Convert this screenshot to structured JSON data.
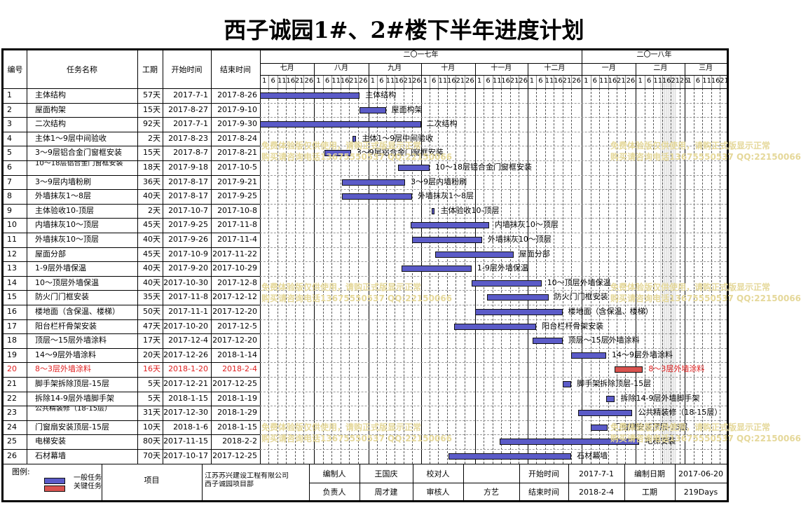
{
  "title": "西子诚园1#、2#楼下半年进度计划",
  "headers": {
    "id": "编号",
    "name": "任务名称",
    "dur": "工期",
    "start": "开始时间",
    "end": "结束时间"
  },
  "years": [
    {
      "label": "二〇一七年"
    },
    {
      "label": "二〇一八年"
    }
  ],
  "months": [
    "七月",
    "八月",
    "九月",
    "十月",
    "十一月",
    "十二月",
    "一月",
    "二月",
    "三月"
  ],
  "day_ticks": [
    "1",
    "6",
    "11",
    "16",
    "21",
    "26"
  ],
  "tasks": [
    {
      "id": "1",
      "name": "主体结构",
      "dur": "57天",
      "start": "2017-7-1",
      "end": "2017-8-26",
      "critical": false
    },
    {
      "id": "2",
      "name": "屋面构架",
      "dur": "15天",
      "start": "2017-8-27",
      "end": "2017-9-10",
      "critical": false
    },
    {
      "id": "3",
      "name": "二次结构",
      "dur": "92天",
      "start": "2017-7-1",
      "end": "2017-9-30",
      "critical": false
    },
    {
      "id": "4",
      "name": "主体1～9层中间验收",
      "dur": "2天",
      "start": "2017-8-23",
      "end": "2017-8-24",
      "critical": false
    },
    {
      "id": "5",
      "name": "3～9层铝合金门窗框安装",
      "dur": "15天",
      "start": "2017-8-7",
      "end": "2017-8-21",
      "critical": false
    },
    {
      "id": "6",
      "name": "10～18层铝合金门窗框安装",
      "dur": "18天",
      "start": "2017-9-18",
      "end": "2017-10-5",
      "critical": false
    },
    {
      "id": "7",
      "name": "3～9层内墙粉刷",
      "dur": "36天",
      "start": "2017-8-17",
      "end": "2017-9-21",
      "critical": false
    },
    {
      "id": "8",
      "name": "外墙抹灰1～8层",
      "dur": "40天",
      "start": "2017-8-17",
      "end": "2017-9-25",
      "critical": false
    },
    {
      "id": "9",
      "name": "主体验收10-顶层",
      "dur": "2天",
      "start": "2017-10-7",
      "end": "2017-10-8",
      "critical": false
    },
    {
      "id": "10",
      "name": "内墙抹灰10～顶层",
      "dur": "45天",
      "start": "2017-9-25",
      "end": "2017-11-8",
      "critical": false
    },
    {
      "id": "11",
      "name": "外墙抹灰10～顶层",
      "dur": "40天",
      "start": "2017-9-26",
      "end": "2017-11-4",
      "critical": false
    },
    {
      "id": "12",
      "name": "屋面分部",
      "dur": "45天",
      "start": "2017-10-9",
      "end": "2017-11-22",
      "critical": false
    },
    {
      "id": "13",
      "name": "1-9层外墙保温",
      "dur": "40天",
      "start": "2017-9-20",
      "end": "2017-10-29",
      "critical": false
    },
    {
      "id": "14",
      "name": "10～顶层外墙保温",
      "dur": "40天",
      "start": "2017-10-30",
      "end": "2017-12-8",
      "critical": false
    },
    {
      "id": "15",
      "name": "防火门门框安装",
      "dur": "35天",
      "start": "2017-11-8",
      "end": "2017-12-12",
      "critical": false
    },
    {
      "id": "16",
      "name": "楼地面（含保温、楼梯）",
      "dur": "50天",
      "start": "2017-11-1",
      "end": "2017-12-20",
      "critical": false
    },
    {
      "id": "17",
      "name": "阳台栏杆骨架安装",
      "dur": "47天",
      "start": "2017-10-20",
      "end": "2017-12-5",
      "critical": false
    },
    {
      "id": "18",
      "name": "顶层～15层外墙涂料",
      "dur": "17天",
      "start": "2017-12-4",
      "end": "2017-12-20",
      "critical": false
    },
    {
      "id": "19",
      "name": "14～9层外墙涂料",
      "dur": "20天",
      "start": "2017-12-26",
      "end": "2018-1-14",
      "critical": false
    },
    {
      "id": "20",
      "name": "8～3层外墙涂料",
      "dur": "16天",
      "start": "2018-1-20",
      "end": "2018-2-4",
      "critical": true
    },
    {
      "id": "21",
      "name": "脚手架拆除顶层-15层",
      "dur": "5天",
      "start": "2017-12-21",
      "end": "2017-12-25",
      "critical": false
    },
    {
      "id": "22",
      "name": "拆除14-9层外墙脚手架",
      "dur": "5天",
      "start": "2018-1-15",
      "end": "2018-1-19",
      "critical": false
    },
    {
      "id": "23",
      "name": "公共精装修（18-15层）",
      "dur": "31天",
      "start": "2017-12-30",
      "end": "2018-1-29",
      "critical": false
    },
    {
      "id": "24",
      "name": "门窗扇安装顶层-15层",
      "dur": "10天",
      "start": "2018-1-6",
      "end": "2018-1-15",
      "critical": false
    },
    {
      "id": "25",
      "name": "电梯安装",
      "dur": "80天",
      "start": "2017-11-15",
      "end": "2018-2-2",
      "critical": false
    },
    {
      "id": "26",
      "name": "石材幕墙",
      "dur": "70天",
      "start": "2017-10-17",
      "end": "2017-12-25",
      "critical": false
    }
  ],
  "bar_labels": [
    "主体结构",
    "屋面构架",
    "二次结构",
    "主体1～9层中间验收",
    "3～9层铝合金门窗框安装",
    "10～18层铝合金门窗框安装",
    "3～9层内墙粉刷",
    "外墙抹灰1～8层",
    "主体验收10-顶层",
    "内墙抹灰10～顶层",
    "外墙抹灰10～顶层",
    "屋面分部",
    "1-9层外墙保温",
    "10～顶层外墙保温",
    "防火门门框安装",
    "楼地面（含保温、楼梯）",
    "阳台栏杆骨架安装",
    "顶层～15层外墙涂料",
    "14～9层外墙涂料",
    "8～3层外墙涂料",
    "脚手架拆除顶层-15层",
    "拆除14-9层外墙脚手架",
    "公共精装修（18-15层）",
    "门窗扇安装顶层-15层",
    "电梯安装",
    "石材幕墙"
  ],
  "colors": {
    "normal": "#5b5bc8",
    "critical": "#d9534f",
    "critical_text": "#e02020"
  },
  "chart_data": {
    "type": "gantt",
    "title": "西子诚园1#、2#楼下半年进度计划",
    "x_axis": {
      "min": "2017-7-1",
      "max": "2018-3-20"
    },
    "tasks_ref": "tasks"
  },
  "footer": {
    "legend_label": "图例:",
    "legend_normal": "一般任务",
    "legend_critical": "关键任务",
    "project_label": "项目",
    "company1": "江苏苏兴建设工程有限公司",
    "company2": "西子诚园项目部",
    "compiler_label": "编制人",
    "compiler": "王国庆",
    "checker_label": "校对人",
    "checker": "",
    "start_label": "开始时间",
    "start": "2017-7-1",
    "date_label": "编制日期",
    "date": "2017-06-20",
    "owner_label": "负责人",
    "owner": "周才建",
    "reviewer_label": "审核人",
    "reviewer": "方艺",
    "end_label": "结束时间",
    "end": "2018-2-4",
    "period_label": "工期",
    "period": "219Days"
  },
  "watermark": {
    "line1": "免费体验版仅供使用，请购正式版显示正常",
    "line2": "购买请咨询电话13675550537 QQ:22150066"
  }
}
